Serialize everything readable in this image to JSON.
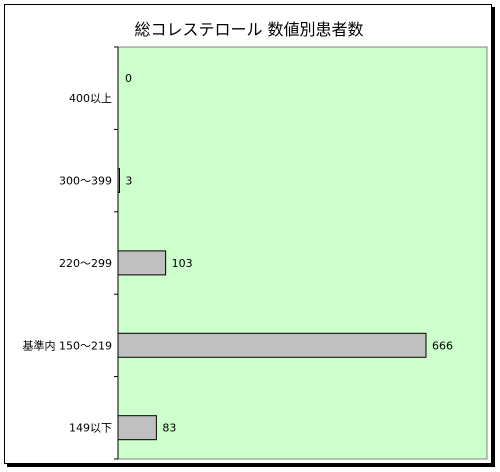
{
  "chart_data": {
    "type": "bar",
    "orientation": "horizontal",
    "title": "総コレステロール 数値別患者数",
    "categories": [
      "400以上",
      "300～399",
      "220～299",
      "基準内 150～219",
      "149以下"
    ],
    "values": [
      0,
      3,
      103,
      666,
      83
    ],
    "xlim": [
      0,
      666
    ],
    "grid": false,
    "legend": "none",
    "colors": {
      "plot_bg": "#ccffcc",
      "bar_fill": "#c0c0c0",
      "bar_stroke": "#000000",
      "axis": "#000000"
    }
  }
}
